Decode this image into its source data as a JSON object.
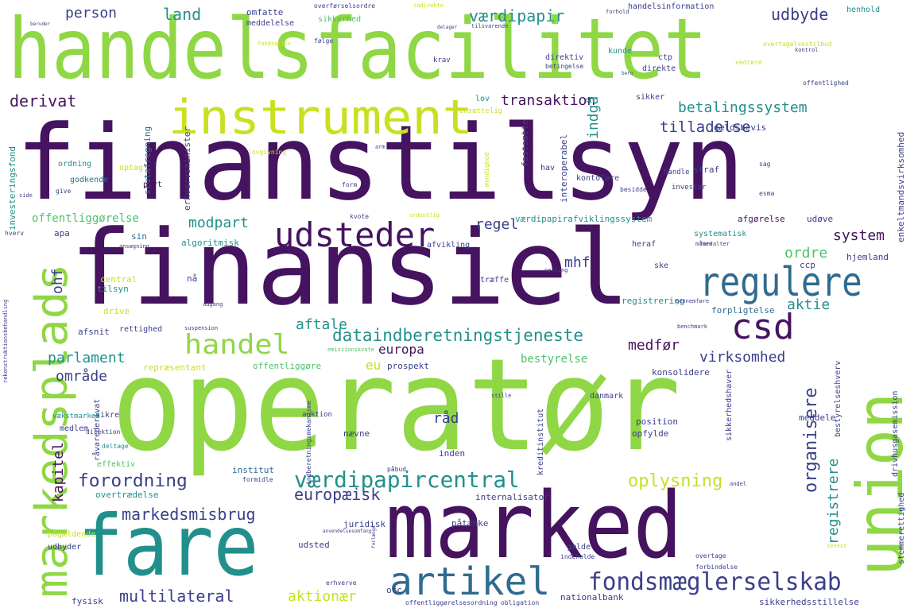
{
  "palette": {
    "dark_purple": "#45135f",
    "indigo": "#3b3f8a",
    "steel_blue": "#2f6b8e",
    "teal": "#21908c",
    "green": "#4fc16b",
    "lime": "#8fd744",
    "yellow": "#c8e020"
  },
  "words": [
    "finanstilsyn",
    "finansiel",
    "operatør",
    "handelsfacilitet",
    "marked",
    "union",
    "markedsplads",
    "fare",
    "instrument",
    "udsteder",
    "regulere",
    "artikel",
    "csd",
    "handel",
    "fondsmæglerselskab",
    "værdipapircentral",
    "forordning",
    "markedsmisbrug",
    "multilateral",
    "dataindberetningstjeneste",
    "oplysning",
    "europæisk",
    "parlament",
    "virksomhed",
    "organisere",
    "registrere",
    "betalingssystem",
    "tilladelse",
    "transaktion",
    "værdipapir",
    "udbyde",
    "person",
    "land",
    "derivat",
    "modpart",
    "system",
    "ordre",
    "aktie",
    "regel",
    "mhf",
    "indgå",
    "aftale",
    "aktionær",
    "medfør",
    "kapitel",
    "område",
    "europa",
    "råd",
    "eu",
    "ohf",
    "bestyrelse",
    "henhold",
    "handelsinformation",
    "omfatte",
    "sikkerhed",
    "meddelelse",
    "direktiv",
    "kunde",
    "ctp",
    "direkte",
    "betingelse",
    "lov",
    "sikker",
    "onsættelig",
    "gældsbevis",
    "slutafregning",
    "fastsætte",
    "interoperabel",
    "erhvervsminister",
    "kontoføre",
    "hav",
    "part",
    "godkende",
    "ordning",
    "optag",
    "straf",
    "handle",
    "investor",
    "enkeltmandsvirksomhed",
    "investeringsfond",
    "offentliggørelse",
    "værdipapirafviklingssystem",
    "afgørelse",
    "udøve",
    "apa",
    "sin",
    "algoritmisk",
    "afvikling",
    "heraf",
    "systematisk",
    "ccp",
    "hjemland",
    "ske",
    "central",
    "nå",
    "tilsyn",
    "drive",
    "træffe",
    "registrering",
    "forpligtelse",
    "afsnit",
    "rettighed",
    "offentliggøre",
    "repræsentant",
    "prospekt",
    "konsolidere",
    "sikkerhedshaver",
    "bestyrelseshverv",
    "danmark",
    "sikre",
    "medlem",
    "auktion",
    "position",
    "opfylde",
    "meddele",
    "nævne",
    "inden",
    "institut",
    "internalisator",
    "juridisk",
    "påtænke",
    "udsted",
    "gælde",
    "indeholde",
    "stemmerettighed",
    "drivhusgasemission",
    "kreditinstitut",
    "effektiv",
    "råvarederivat",
    "overtrædelse",
    "pågældende",
    "udbyder",
    "fysisk",
    "otc",
    "nationalbank",
    "sikkerhedsstillelse",
    "offentliggørelsesordning",
    "obligation",
    "forbindelse",
    "vækstmarked",
    "deltage",
    "overførselsordre",
    "indirekte",
    "tilsvarende",
    "overtagelsestilbud",
    "kontrol",
    "følge",
    "krav",
    "offentlighed",
    "vedrøre",
    "lovgivning",
    "myndighed",
    "form",
    "sag",
    "esma",
    "besidde",
    "hverv",
    "give",
    "kvote",
    "ordentlig",
    "ansøgning",
    "måned",
    "netting",
    "forvalter",
    "adgang",
    "suspension",
    "benchmark",
    "emissionskvote",
    "gennemføre",
    "formidle",
    "påbud",
    "direktion",
    "indberetningsmekanisme",
    "rekonstruktionsbehandling",
    "fondsaktiv",
    "forhold",
    "bero",
    "arm",
    "side",
    "stille",
    "andel",
    "senest",
    "anvendelsesomfang",
    "overtage",
    "erhverve",
    "forlænge",
    "beruder",
    "delager"
  ]
}
